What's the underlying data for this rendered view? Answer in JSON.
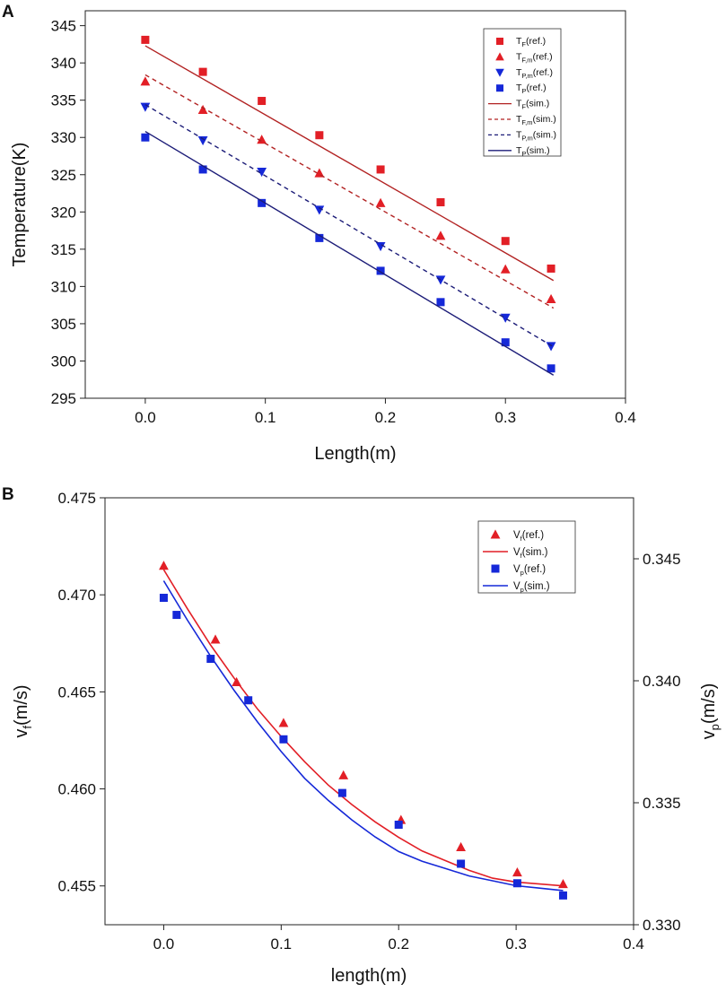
{
  "figure": {
    "panel_a_letter": "A",
    "panel_b_letter": "B"
  },
  "colors": {
    "red": "#e21f26",
    "darkred": "#b22222",
    "blue": "#1528d8",
    "navy": "#1c1c78",
    "axis": "#222222"
  },
  "chart_data": [
    {
      "type": "scatter",
      "panel": "A",
      "title": "",
      "xlabel": "Length(m)",
      "ylabel": "Temperature(K)",
      "xlim": [
        -0.05,
        0.4
      ],
      "ylim": [
        295,
        347
      ],
      "xticks": [
        0.0,
        0.1,
        0.2,
        0.3,
        0.4
      ],
      "xtick_labels": [
        "0.0",
        "0.1",
        "0.2",
        "0.3",
        "0.4"
      ],
      "yticks": [
        295,
        300,
        305,
        310,
        315,
        320,
        325,
        330,
        335,
        340,
        345
      ],
      "ytick_labels": [
        "295",
        "300",
        "305",
        "310",
        "315",
        "320",
        "325",
        "330",
        "335",
        "340",
        "345"
      ],
      "legend_position": "top-right",
      "series": [
        {
          "name": "TF(ref.)",
          "label_main": "T",
          "label_sub": "F",
          "label_suffix": "(ref.)",
          "kind": "marker",
          "marker": "square",
          "color": "#e21f26",
          "x": [
            0.0,
            0.048,
            0.097,
            0.145,
            0.196,
            0.246,
            0.3,
            0.338
          ],
          "y": [
            343.1,
            338.8,
            334.9,
            330.3,
            325.7,
            321.3,
            316.1,
            312.4
          ]
        },
        {
          "name": "TF,m(ref.)",
          "label_main": "T",
          "label_sub": "F,m",
          "label_suffix": "(ref.)",
          "kind": "marker",
          "marker": "triangle-up",
          "color": "#e21f26",
          "x": [
            0.0,
            0.048,
            0.097,
            0.145,
            0.196,
            0.246,
            0.3,
            0.338
          ],
          "y": [
            337.5,
            333.7,
            329.7,
            325.2,
            321.2,
            316.8,
            312.3,
            308.3
          ]
        },
        {
          "name": "TP,m(ref.)",
          "label_main": "T",
          "label_sub": "P,m",
          "label_suffix": "(ref.)",
          "kind": "marker",
          "marker": "triangle-down",
          "color": "#1528d8",
          "x": [
            0.0,
            0.048,
            0.097,
            0.145,
            0.196,
            0.246,
            0.3,
            0.338
          ],
          "y": [
            334.1,
            329.6,
            325.4,
            320.3,
            315.4,
            310.9,
            305.8,
            302.0
          ]
        },
        {
          "name": "TP(ref.)",
          "label_main": "T",
          "label_sub": "P",
          "label_suffix": "(ref.)",
          "kind": "marker",
          "marker": "square",
          "color": "#1528d8",
          "x": [
            0.0,
            0.048,
            0.097,
            0.145,
            0.196,
            0.246,
            0.3,
            0.338
          ],
          "y": [
            330.0,
            325.7,
            321.2,
            316.5,
            312.1,
            307.9,
            302.5,
            299.0
          ]
        },
        {
          "name": "TF(sim.)",
          "label_main": "T",
          "label_sub": "F",
          "label_suffix": "(sim.)",
          "kind": "line",
          "dash": "solid",
          "color": "#b22222",
          "x": [
            0.0,
            0.34
          ],
          "y": [
            342.3,
            310.8
          ]
        },
        {
          "name": "TF,m(sim.)",
          "label_main": "T",
          "label_sub": "F,m",
          "label_suffix": "(sim.)",
          "kind": "line",
          "dash": "dashed",
          "color": "#b22222",
          "x": [
            0.0,
            0.34
          ],
          "y": [
            338.4,
            307.1
          ]
        },
        {
          "name": "TP,m(sim.)",
          "label_main": "T",
          "label_sub": "P,m",
          "label_suffix": "(sim.)",
          "kind": "line",
          "dash": "dashed",
          "color": "#1c1c78",
          "x": [
            0.0,
            0.34
          ],
          "y": [
            334.4,
            301.9
          ]
        },
        {
          "name": "TP(sim.)",
          "label_main": "T",
          "label_sub": "P",
          "label_suffix": "(sim.)",
          "kind": "line",
          "dash": "solid",
          "color": "#1c1c78",
          "x": [
            0.0,
            0.34
          ],
          "y": [
            330.8,
            298.1
          ]
        }
      ]
    },
    {
      "type": "scatter",
      "panel": "B",
      "title": "",
      "xlabel": "length(m)",
      "ylabel": "vf(m/s)",
      "ylabel_main": "v",
      "ylabel_sub": "f",
      "ylabel_suffix": "(m/s)",
      "y2label": "vp(m/s)",
      "y2label_main": "v",
      "y2label_sub": "p",
      "y2label_suffix": "(m/s)",
      "xlim": [
        -0.05,
        0.4
      ],
      "ylim": [
        0.453,
        0.475
      ],
      "y2lim": [
        0.33,
        0.3475
      ],
      "xticks": [
        0.0,
        0.1,
        0.2,
        0.3,
        0.4
      ],
      "xtick_labels": [
        "0.0",
        "0.1",
        "0.2",
        "0.3",
        "0.4"
      ],
      "yticks": [
        0.455,
        0.46,
        0.465,
        0.47,
        0.475
      ],
      "ytick_labels": [
        "0.455",
        "0.460",
        "0.465",
        "0.470",
        "0.475"
      ],
      "y2ticks": [
        0.33,
        0.335,
        0.34,
        0.345
      ],
      "y2tick_labels": [
        "0.330",
        "0.335",
        "0.340",
        "0.345"
      ],
      "legend_position": "top-right",
      "series": [
        {
          "name": "Vf(ref.)",
          "label_main": "V",
          "label_sub": "f",
          "label_suffix": "(ref.)",
          "kind": "marker",
          "marker": "triangle-up",
          "color": "#e21f26",
          "axis": "left",
          "x": [
            0.0,
            0.044,
            0.062,
            0.102,
            0.153,
            0.202,
            0.253,
            0.301,
            0.34
          ],
          "y": [
            0.4715,
            0.4677,
            0.4655,
            0.4634,
            0.4607,
            0.4584,
            0.457,
            0.4557,
            0.4551
          ]
        },
        {
          "name": "Vf(sim.)",
          "label_main": "V",
          "label_sub": "f",
          "label_suffix": "(sim.)",
          "kind": "line",
          "dash": "solid",
          "color": "#e21f26",
          "axis": "left",
          "x": [
            0.0,
            0.02,
            0.04,
            0.06,
            0.08,
            0.1,
            0.12,
            0.14,
            0.16,
            0.18,
            0.2,
            0.22,
            0.24,
            0.26,
            0.28,
            0.3,
            0.32,
            0.34
          ],
          "y": [
            0.4713,
            0.4693,
            0.4674,
            0.4657,
            0.4641,
            0.4627,
            0.4614,
            0.4602,
            0.4592,
            0.4583,
            0.4575,
            0.4568,
            0.4563,
            0.4558,
            0.4554,
            0.4552,
            0.4551,
            0.455
          ]
        },
        {
          "name": "Vp(ref.)",
          "label_main": "V",
          "label_sub": "p",
          "label_suffix": "(ref.)",
          "kind": "marker",
          "marker": "square",
          "color": "#1528d8",
          "axis": "right",
          "x": [
            0.0,
            0.011,
            0.04,
            0.072,
            0.102,
            0.152,
            0.2,
            0.253,
            0.301,
            0.34
          ],
          "y": [
            0.3434,
            0.3427,
            0.3409,
            0.3392,
            0.3376,
            0.3354,
            0.3341,
            0.3325,
            0.3317,
            0.3312
          ]
        },
        {
          "name": "Vp(sim.)",
          "label_main": "V",
          "label_sub": "p",
          "label_suffix": "(sim.)",
          "kind": "line",
          "dash": "solid",
          "color": "#1528d8",
          "axis": "right",
          "x": [
            0.0,
            0.02,
            0.04,
            0.06,
            0.08,
            0.1,
            0.12,
            0.14,
            0.16,
            0.18,
            0.2,
            0.22,
            0.24,
            0.26,
            0.28,
            0.3,
            0.32,
            0.34
          ],
          "y": [
            0.3441,
            0.3425,
            0.341,
            0.3396,
            0.3383,
            0.3371,
            0.336,
            0.3351,
            0.3343,
            0.3336,
            0.333,
            0.3326,
            0.3323,
            0.332,
            0.3318,
            0.3316,
            0.3315,
            0.3314
          ]
        }
      ]
    }
  ]
}
